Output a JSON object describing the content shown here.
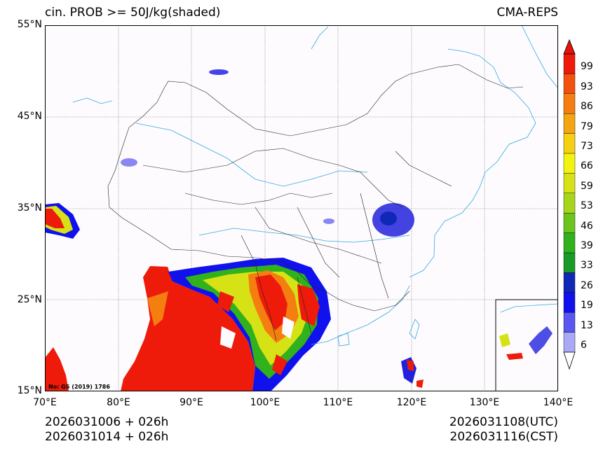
{
  "header": {
    "title": "cin. PROB >= 50J/kg(shaded)",
    "model": "CMA-REPS"
  },
  "axes": {
    "lat_labels": [
      "55°N",
      "45°N",
      "35°N",
      "25°N",
      "15°N"
    ],
    "lon_labels": [
      "70°E",
      "80°E",
      "90°E",
      "100°E",
      "110°E",
      "120°E",
      "130°E",
      "140°E"
    ],
    "lat_range": [
      15,
      55
    ],
    "lon_range": [
      70,
      140
    ]
  },
  "map_note": "No: GS (2019) 1786",
  "colorbar": {
    "levels": [
      "6",
      "13",
      "19",
      "26",
      "33",
      "39",
      "46",
      "53",
      "59",
      "66",
      "73",
      "79",
      "86",
      "93",
      "99"
    ],
    "colors": [
      "#a9a9f5",
      "#5858f0",
      "#1111ee",
      "#1028b8",
      "#1a9a28",
      "#31b11c",
      "#6cc41c",
      "#a6d51a",
      "#d6e216",
      "#f3f313",
      "#f4cf12",
      "#f4a512",
      "#f47e10",
      "#f2520e",
      "#ee1b0b"
    ],
    "over_color": "#e6110b",
    "under_color": "#ffffff"
  },
  "footer": {
    "init_utc": "2026031006  +  026h",
    "init_cst": "2026031014  +  026h",
    "valid_utc": "2026031108(UTC)",
    "valid_cst": "2026031116(CST)"
  },
  "colors": {
    "coast": "#33aadd",
    "border": "#222222",
    "grid": "#777777",
    "high_prob": "#ee1b0b",
    "low_prob": "#2222dd"
  }
}
